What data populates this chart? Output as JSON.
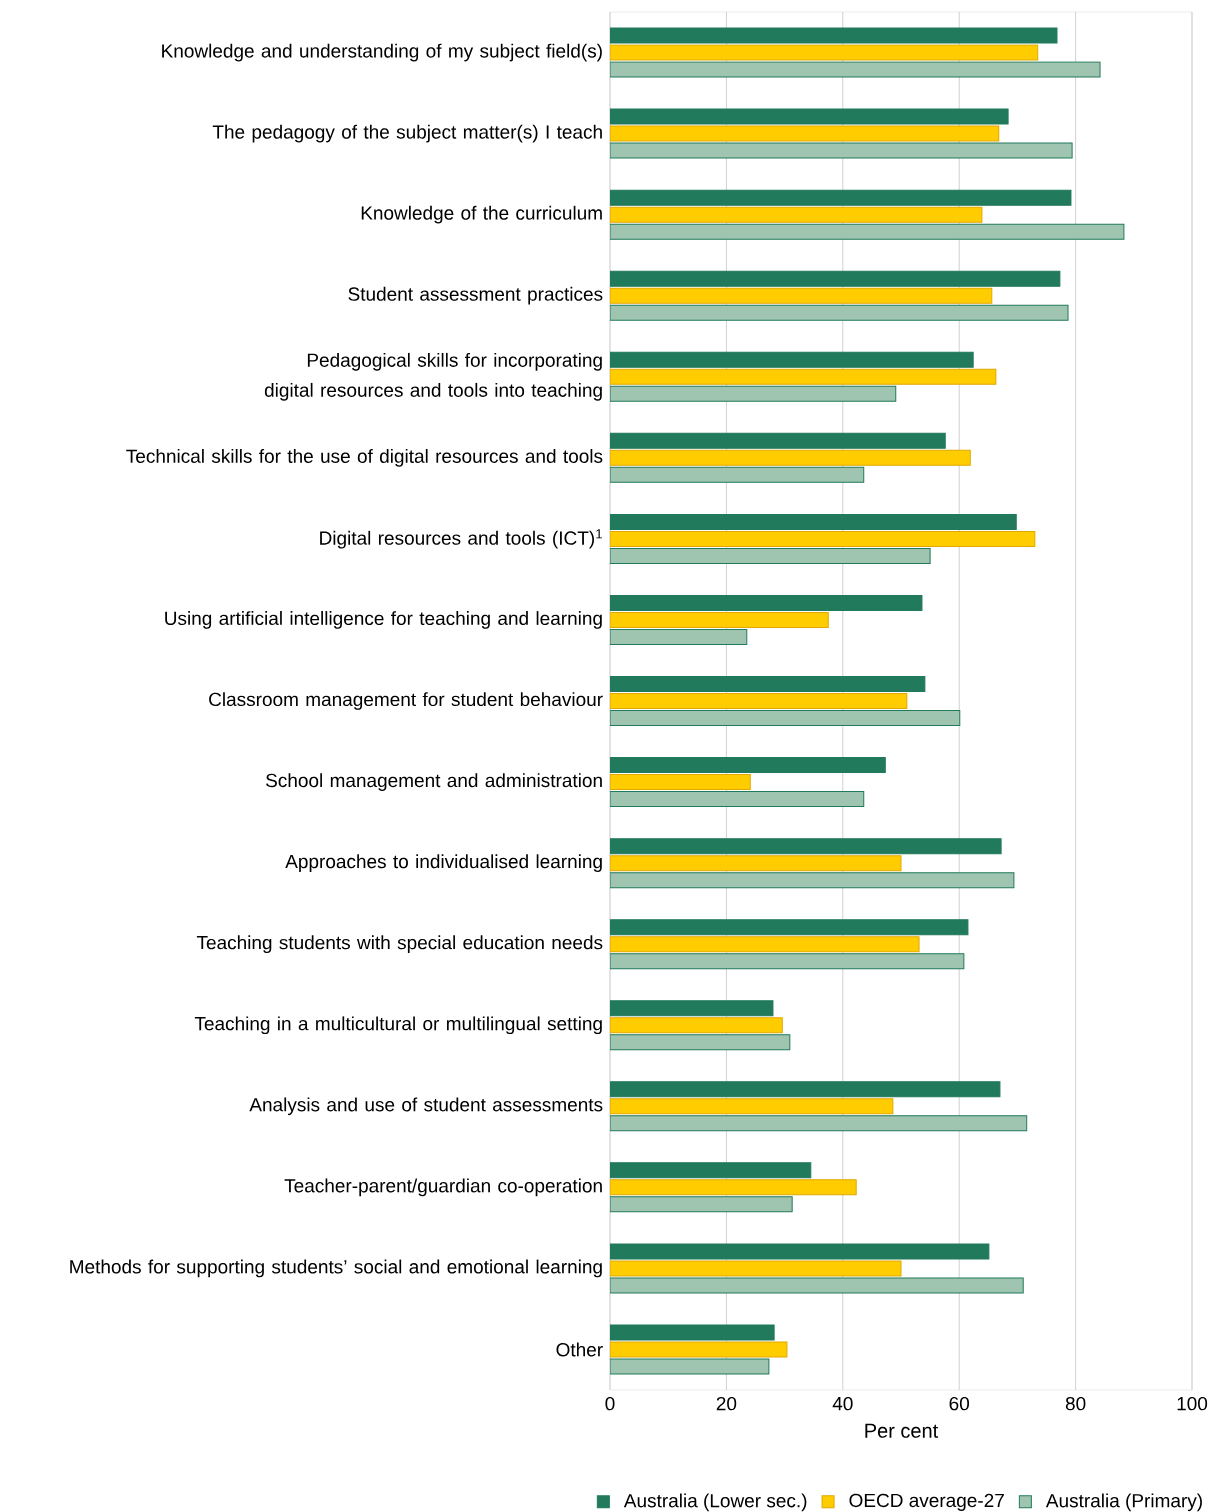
{
  "chart_data": {
    "type": "bar",
    "orientation": "horizontal",
    "xlabel": "Per cent",
    "categories": [
      "Knowledge and understanding of my subject field(s)",
      "The pedagogy of the subject matter(s) I teach",
      "Knowledge of the curriculum",
      "Student assessment practices",
      "Pedagogical skills for incorporating digital resources and tools into teaching",
      "Technical skills for the use of digital resources and tools",
      "Digital resources and tools (ICT)$^{1}$",
      "Using artificial intelligence for teaching and learning",
      "Classroom management for student behaviour",
      "School management and administration",
      "Approaches to individualised learning",
      "Teaching students with special education needs",
      "Teaching in a multicultural or multilingual setting",
      "Analysis and use of student assessments",
      "Teacher-parent/guardian co-operation",
      "Methods for supporting students’ social and emotional learning",
      "Other"
    ],
    "series": [
      {
        "name": "Australia (Lower sec.)",
        "color": "#217a5b",
        "values": [
          76.8,
          68.4,
          79.2,
          77.3,
          62.4,
          57.6,
          69.8,
          53.6,
          54.1,
          47.3,
          67.2,
          61.5,
          28.0,
          67.0,
          34.5,
          65.1,
          28.2
        ]
      },
      {
        "name": "OECD average-27",
        "color": "#ffcc00",
        "values": [
          73.5,
          66.8,
          63.9,
          65.6,
          66.3,
          61.9,
          73.0,
          37.5,
          51.0,
          24.1,
          50.0,
          53.1,
          29.6,
          48.6,
          42.3,
          50.0,
          30.4
        ]
      },
      {
        "name": "Australia (Primary)",
        "color": "#9fc5b0",
        "values": [
          84.2,
          79.4,
          88.3,
          78.7,
          49.1,
          43.6,
          55.0,
          23.5,
          60.1,
          43.6,
          69.4,
          60.8,
          30.9,
          71.6,
          31.3,
          71.0,
          27.3
        ]
      }
    ],
    "xlim": [
      0,
      100
    ],
    "xticks": [
      0,
      20,
      40,
      60,
      80,
      100
    ],
    "grid": "x",
    "legend": "bottom"
  }
}
